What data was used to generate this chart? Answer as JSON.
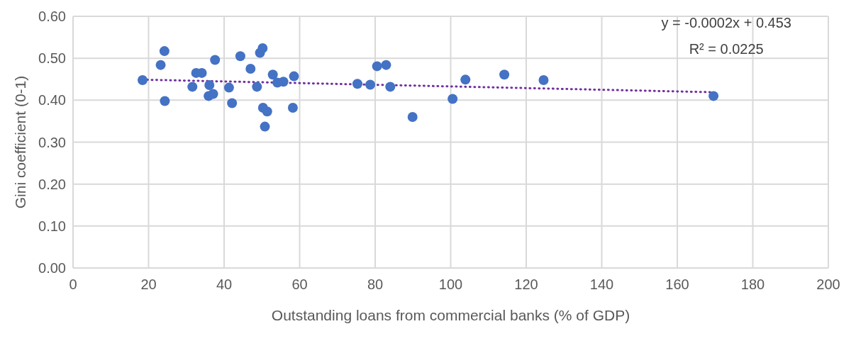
{
  "chart_data": {
    "type": "scatter",
    "xlabel": "Outstanding loans from commercial banks (% of GDP)",
    "ylabel": "Gini coefficient (0-1)",
    "xlim": [
      0,
      200
    ],
    "xticks": [
      0,
      20,
      40,
      60,
      80,
      100,
      120,
      140,
      160,
      180,
      200
    ],
    "ylim": [
      0,
      0.6
    ],
    "yticks": [
      {
        "value": 0,
        "label": "0.00"
      },
      {
        "value": 0.1,
        "label": "0.10"
      },
      {
        "value": 0.2,
        "label": "0.20"
      },
      {
        "value": 0.3,
        "label": "0.30"
      },
      {
        "value": 0.4,
        "label": "0.40"
      },
      {
        "value": 0.5,
        "label": "0.50"
      },
      {
        "value": 0.6,
        "label": "0.60"
      }
    ],
    "grid": true,
    "annotations": [
      "y = -0.0002x + 0.453",
      "R² = 0.0225"
    ],
    "series": [
      {
        "color": "#4472c4",
        "marker": "circle",
        "x": [
          18.4,
          23.2,
          24.2,
          24.3,
          31.6,
          32.6,
          34.1,
          37.6,
          36.1,
          35.9,
          37.1,
          41.3,
          42.1,
          44.3,
          47.0,
          48.7,
          49.5,
          50.2,
          50.3,
          51.4,
          50.8,
          52.9,
          54.1,
          55.7,
          58.5,
          58.2,
          75.3,
          78.7,
          80.5,
          82.9,
          84.0,
          89.9,
          100.5,
          103.9,
          114.2,
          124.6,
          169.6
        ],
        "values": [
          0.448,
          0.484,
          0.517,
          0.398,
          0.432,
          0.465,
          0.465,
          0.496,
          0.436,
          0.41,
          0.415,
          0.43,
          0.393,
          0.505,
          0.475,
          0.432,
          0.513,
          0.524,
          0.382,
          0.373,
          0.337,
          0.461,
          0.442,
          0.444,
          0.457,
          0.382,
          0.439,
          0.437,
          0.481,
          0.484,
          0.432,
          0.36,
          0.403,
          0.449,
          0.461,
          0.448,
          0.41
        ]
      },
      {
        "type": "line",
        "color": "#7030a0",
        "line_style": "dotted",
        "marker": "none",
        "x": [
          18.4,
          169.6
        ],
        "values": [
          0.449,
          0.419
        ]
      }
    ]
  }
}
